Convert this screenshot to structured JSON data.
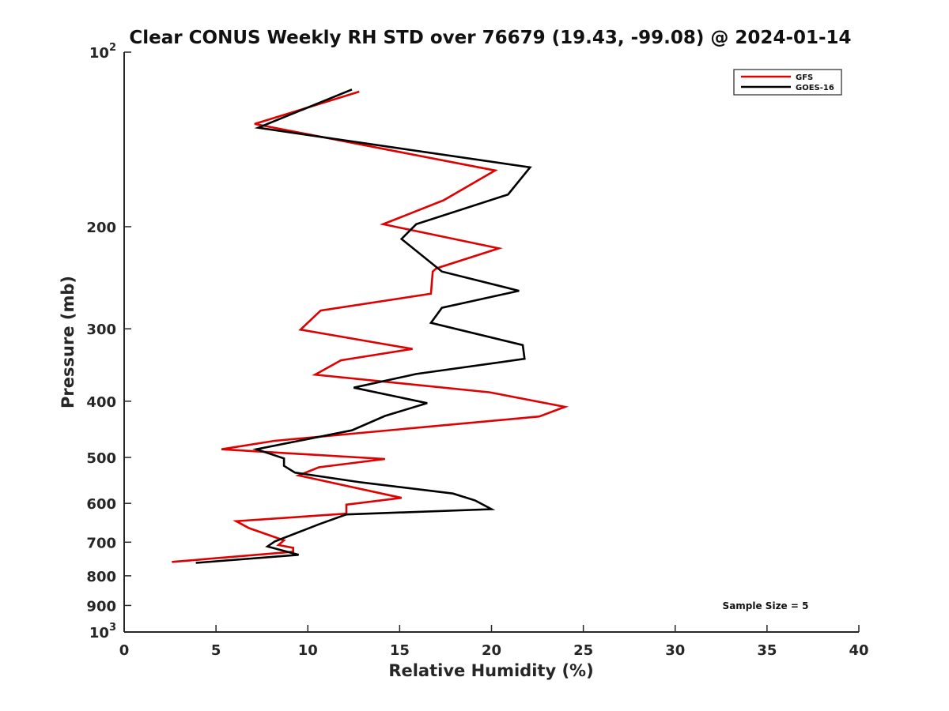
{
  "chart_data": {
    "type": "line",
    "title": "Clear CONUS Weekly RH STD over 76679 (19.43, -99.08) @ 2024-01-14",
    "xlabel": "Relative Humidity (%)",
    "ylabel": "Pressure (mb)",
    "xlim": [
      0,
      40
    ],
    "ylim": [
      100,
      1000
    ],
    "yscale": "log",
    "y_reversed": true,
    "grid": false,
    "legend_position": "top-right",
    "x_ticks": [
      "0",
      "5",
      "10",
      "15",
      "20",
      "25",
      "30",
      "35",
      "40"
    ],
    "y_ticks": [
      {
        "value": 100,
        "base": "10",
        "exp": "2"
      },
      {
        "value": 200,
        "label": "200"
      },
      {
        "value": 300,
        "label": "300"
      },
      {
        "value": 400,
        "label": "400"
      },
      {
        "value": 500,
        "label": "500"
      },
      {
        "value": 600,
        "label": "600"
      },
      {
        "value": 700,
        "label": "700"
      },
      {
        "value": 800,
        "label": "800"
      },
      {
        "value": 900,
        "label": "900"
      },
      {
        "value": 1000,
        "base": "10",
        "exp": "3"
      }
    ],
    "annotation": "Sample Size = 5",
    "series": [
      {
        "name": "GFS",
        "color": "#e00000",
        "points": [
          [
            12.8,
            117
          ],
          [
            7.1,
            133
          ],
          [
            20.2,
            160
          ],
          [
            17.4,
            180
          ],
          [
            14.1,
            198
          ],
          [
            20.4,
            218
          ],
          [
            17.0,
            236
          ],
          [
            16.8,
            239
          ],
          [
            16.7,
            261
          ],
          [
            10.7,
            279
          ],
          [
            9.6,
            301
          ],
          [
            15.7,
            325
          ],
          [
            11.8,
            340
          ],
          [
            10.4,
            360
          ],
          [
            19.9,
            386
          ],
          [
            24.0,
            409
          ],
          [
            22.6,
            425
          ],
          [
            8.2,
            468
          ],
          [
            5.3,
            484
          ],
          [
            14.2,
            503
          ],
          [
            10.6,
            520
          ],
          [
            9.5,
            537
          ],
          [
            15.1,
            587
          ],
          [
            12.1,
            603
          ],
          [
            12.1,
            625
          ],
          [
            6.1,
            644
          ],
          [
            6.8,
            662
          ],
          [
            8.7,
            695
          ],
          [
            8.4,
            708
          ],
          [
            9.2,
            716
          ],
          [
            9.2,
            727
          ],
          [
            2.6,
            757
          ]
        ]
      },
      {
        "name": "GOES-16",
        "color": "#000000",
        "points": [
          [
            12.4,
            116
          ],
          [
            7.3,
            135
          ],
          [
            22.1,
            158
          ],
          [
            20.9,
            176
          ],
          [
            15.9,
            198
          ],
          [
            15.1,
            210
          ],
          [
            17.3,
            239
          ],
          [
            21.5,
            258
          ],
          [
            17.3,
            276
          ],
          [
            16.7,
            293
          ],
          [
            21.7,
            320
          ],
          [
            21.8,
            338
          ],
          [
            15.9,
            359
          ],
          [
            12.5,
            379
          ],
          [
            16.5,
            403
          ],
          [
            14.2,
            424
          ],
          [
            12.4,
            449
          ],
          [
            7.2,
            484
          ],
          [
            8.7,
            502
          ],
          [
            8.7,
            517
          ],
          [
            9.3,
            531
          ],
          [
            12.9,
            552
          ],
          [
            17.9,
            577
          ],
          [
            19.1,
            593
          ],
          [
            20.0,
            614
          ],
          [
            12.1,
            627
          ],
          [
            10.6,
            652
          ],
          [
            8.2,
            698
          ],
          [
            7.8,
            712
          ],
          [
            9.5,
            736
          ],
          [
            3.9,
            760
          ]
        ]
      }
    ]
  }
}
